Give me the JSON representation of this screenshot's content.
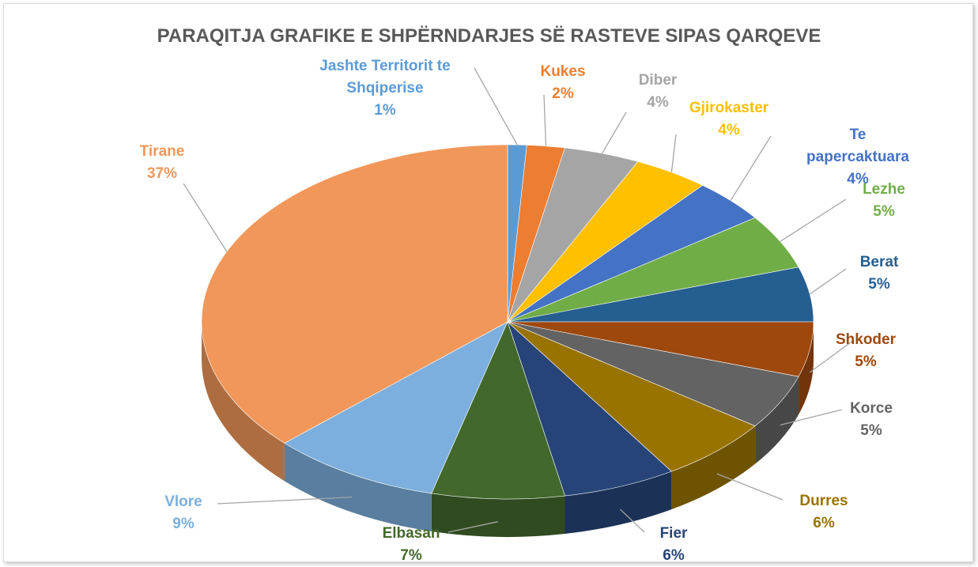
{
  "chart_data": {
    "type": "pie3d",
    "title": "PARAQITJA GRAFIKE E SHPËRNDARJES SË RASTEVE SIPAS QARQEVE",
    "categories": [
      "Jashte Territorit te Shqiperise",
      "Kukes",
      "Diber",
      "Gjirokaster",
      "Te papercaktuara",
      "Lezhe",
      "Berat",
      "Shkoder",
      "Korce",
      "Durres",
      "Fier",
      "Elbasan",
      "Vlore",
      "Tirane"
    ],
    "values": [
      1,
      2,
      4,
      4,
      4,
      5,
      5,
      5,
      5,
      6,
      6,
      7,
      9,
      37
    ],
    "value_labels": [
      "1%",
      "2%",
      "4%",
      "4%",
      "4%",
      "5%",
      "5%",
      "5%",
      "5%",
      "6%",
      "6%",
      "7%",
      "9%",
      "37%"
    ],
    "colors": [
      "#5b9bd5",
      "#ed7d31",
      "#a5a5a5",
      "#ffc000",
      "#4472c4",
      "#70ad47",
      "#255e91",
      "#9e480e",
      "#636363",
      "#997300",
      "#264478",
      "#43682b",
      "#7cafdd",
      "#f1975a"
    ]
  }
}
